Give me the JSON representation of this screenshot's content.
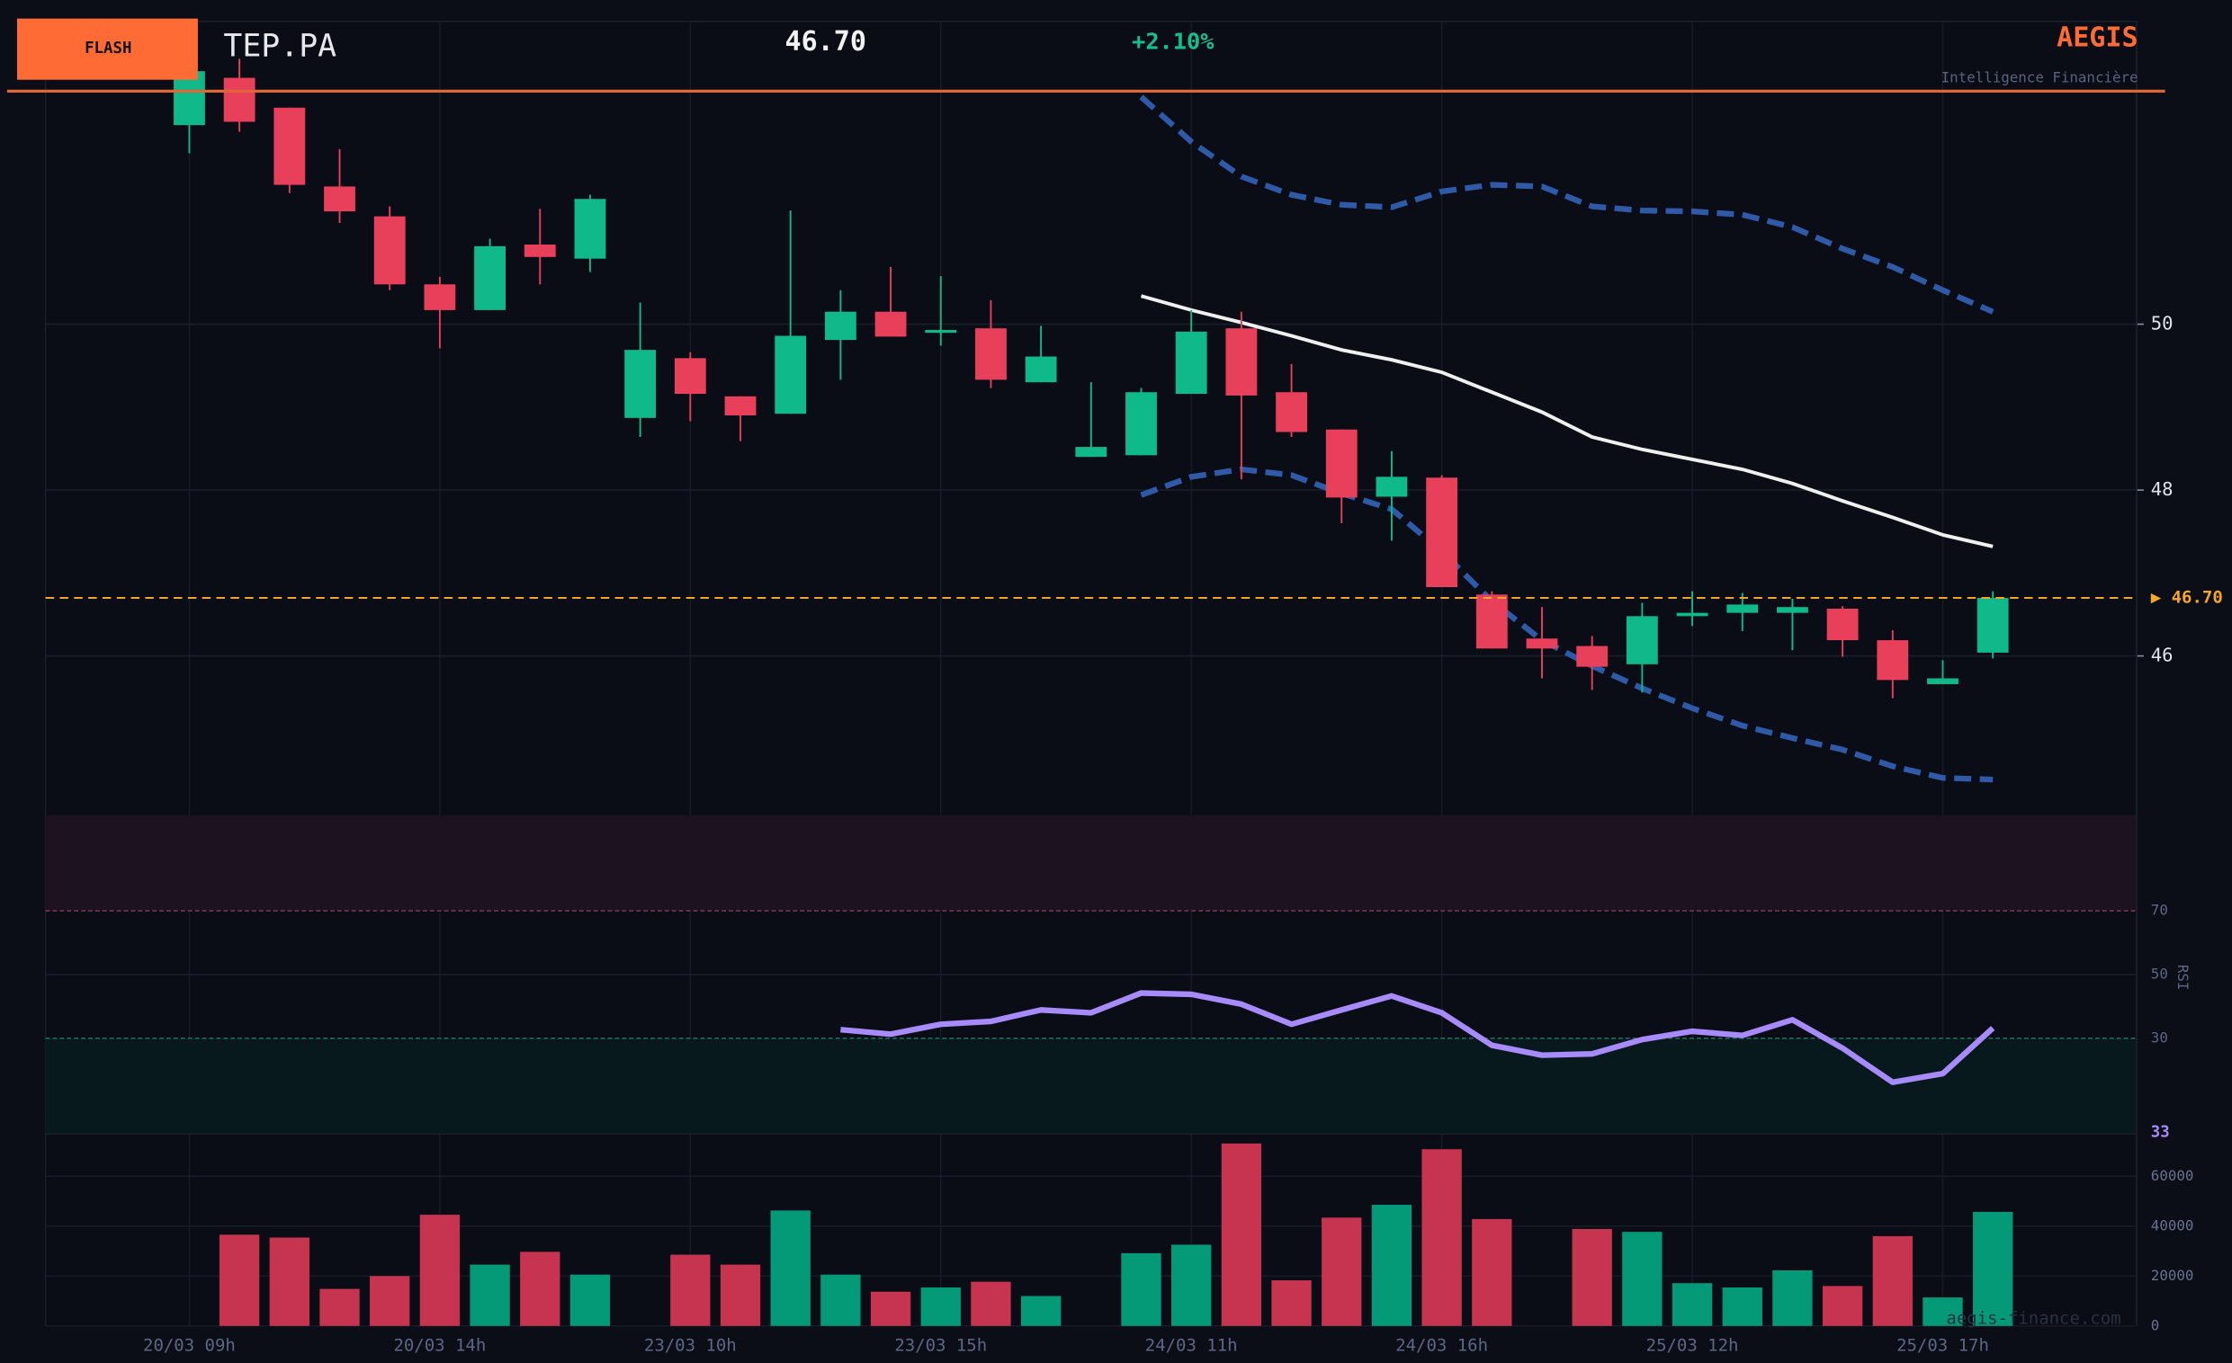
{
  "header": {
    "badge": "FLASH",
    "ticker": "TEP.PA",
    "price": "46.70",
    "change": "+2.10%",
    "brand": "AEGIS",
    "tagline": "Intelligence Financière",
    "watermark": "aegis-finance.com"
  },
  "chart_data": {
    "type": "candlestick",
    "x": [
      "20/03 09h",
      null,
      null,
      null,
      null,
      "20/03 14h",
      null,
      null,
      null,
      null,
      "23/03 10h",
      null,
      null,
      null,
      null,
      "23/03 15h",
      null,
      null,
      null,
      null,
      "24/03 11h",
      null,
      null,
      null,
      null,
      "24/03 16h",
      null,
      null,
      null,
      null,
      "25/03 12h",
      null,
      null,
      null,
      null,
      "25/03 17h",
      null
    ],
    "open": [
      52.4,
      52.97,
      52.61,
      51.66,
      51.3,
      50.48,
      50.17,
      50.96,
      50.79,
      48.87,
      49.59,
      49.13,
      48.92,
      49.81,
      50.15,
      49.9,
      49.95,
      49.3,
      48.4,
      48.42,
      49.16,
      49.95,
      49.18,
      48.73,
      47.92,
      48.15,
      46.74,
      46.21,
      46.12,
      45.9,
      46.48,
      46.52,
      46.52,
      46.57,
      46.19,
      45.66,
      46.04
    ],
    "high": [
      53.22,
      53.2,
      52.61,
      52.11,
      51.42,
      50.57,
      51.03,
      51.39,
      51.56,
      50.26,
      49.66,
      49.13,
      51.37,
      50.41,
      50.69,
      50.58,
      50.29,
      49.98,
      49.3,
      49.23,
      50.17,
      50.15,
      49.52,
      48.73,
      48.47,
      48.18,
      46.78,
      46.59,
      46.24,
      46.64,
      46.78,
      46.76,
      46.69,
      46.6,
      46.31,
      45.95,
      46.78
    ],
    "low": [
      52.06,
      52.32,
      51.58,
      51.22,
      50.41,
      49.71,
      50.17,
      50.48,
      50.63,
      48.64,
      48.83,
      48.59,
      48.92,
      49.33,
      49.85,
      49.74,
      49.23,
      49.3,
      48.4,
      48.42,
      49.16,
      48.13,
      48.64,
      47.6,
      47.39,
      46.83,
      46.09,
      45.73,
      45.59,
      45.56,
      46.36,
      46.3,
      46.07,
      45.99,
      45.49,
      45.66,
      45.97
    ],
    "close": [
      53.05,
      52.44,
      51.68,
      51.36,
      50.48,
      50.17,
      50.94,
      50.81,
      51.51,
      49.69,
      49.16,
      48.9,
      49.86,
      50.15,
      49.85,
      49.93,
      49.33,
      49.61,
      48.52,
      49.18,
      49.91,
      49.14,
      48.7,
      47.91,
      48.16,
      46.83,
      46.09,
      46.09,
      45.87,
      46.48,
      46.52,
      46.62,
      46.59,
      46.19,
      45.71,
      45.73,
      46.7
    ],
    "up_color": "#0fb98a",
    "down_color": "#e8405a",
    "ylim": [
      44.08,
      53.65
    ],
    "yticks": [
      46,
      48,
      50
    ],
    "grid": true,
    "bands": [
      {
        "name": "upper",
        "color": "#2f5aa8",
        "dashed": true,
        "values": [
          null,
          null,
          null,
          null,
          null,
          null,
          null,
          null,
          null,
          null,
          null,
          null,
          null,
          null,
          null,
          null,
          null,
          null,
          null,
          52.74,
          52.2,
          51.78,
          51.56,
          51.44,
          51.41,
          51.6,
          51.68,
          51.66,
          51.42,
          51.37,
          51.36,
          51.32,
          51.17,
          50.91,
          50.69,
          50.41,
          50.15
        ]
      },
      {
        "name": "middle",
        "color": "#f0f0f0",
        "dashed": false,
        "values": [
          null,
          null,
          null,
          null,
          null,
          null,
          null,
          null,
          null,
          null,
          null,
          null,
          null,
          null,
          null,
          null,
          null,
          null,
          null,
          50.34,
          50.17,
          50.02,
          49.86,
          49.69,
          49.57,
          49.42,
          49.18,
          48.94,
          48.64,
          48.49,
          48.37,
          48.25,
          48.08,
          47.87,
          47.67,
          47.46,
          47.32
        ]
      },
      {
        "name": "lower",
        "color": "#2f5aa8",
        "dashed": true,
        "values": [
          null,
          null,
          null,
          null,
          null,
          null,
          null,
          null,
          null,
          null,
          null,
          null,
          null,
          null,
          null,
          null,
          null,
          null,
          null,
          47.94,
          48.16,
          48.25,
          48.18,
          47.96,
          47.77,
          47.26,
          46.66,
          46.19,
          45.88,
          45.61,
          45.37,
          45.16,
          45.01,
          44.87,
          44.67,
          44.53,
          44.51
        ]
      }
    ],
    "current_price": 46.7,
    "current_price_label": "▶ 46.70",
    "current_price_color": "#f5a623",
    "rsi": {
      "label": "RSI",
      "color": "#a78bfa",
      "ylim": [
        0,
        100
      ],
      "yticks": [
        30,
        50,
        70
      ],
      "overbought": 70,
      "oversold": 30,
      "values": [
        null,
        null,
        null,
        null,
        null,
        null,
        null,
        null,
        null,
        null,
        null,
        null,
        null,
        32.7,
        31.3,
        34.4,
        35.3,
        38.9,
        38.0,
        44.2,
        43.8,
        40.7,
        34.4,
        38.9,
        43.3,
        38.0,
        27.8,
        24.7,
        25.1,
        29.6,
        32.2,
        30.9,
        35.8,
        26.9,
        16.2,
        18.9,
        33.2
      ],
      "last_value_label": "33"
    },
    "volume": {
      "ylim": [
        0,
        77000
      ],
      "yticks": [
        0,
        20000,
        40000,
        60000
      ],
      "up_color": "#049a78",
      "down_color": "#c7344f",
      "values": [
        null,
        36571,
        35429,
        14857,
        20000,
        44571,
        24571,
        29714,
        20571,
        null,
        28571,
        24571,
        46286,
        20571,
        13714,
        15429,
        17714,
        12000,
        null,
        29143,
        32571,
        73143,
        18286,
        43429,
        48571,
        70857,
        42857,
        null,
        38857,
        37714,
        17143,
        15429,
        22286,
        16000,
        36000,
        11429,
        45714
      ]
    }
  }
}
